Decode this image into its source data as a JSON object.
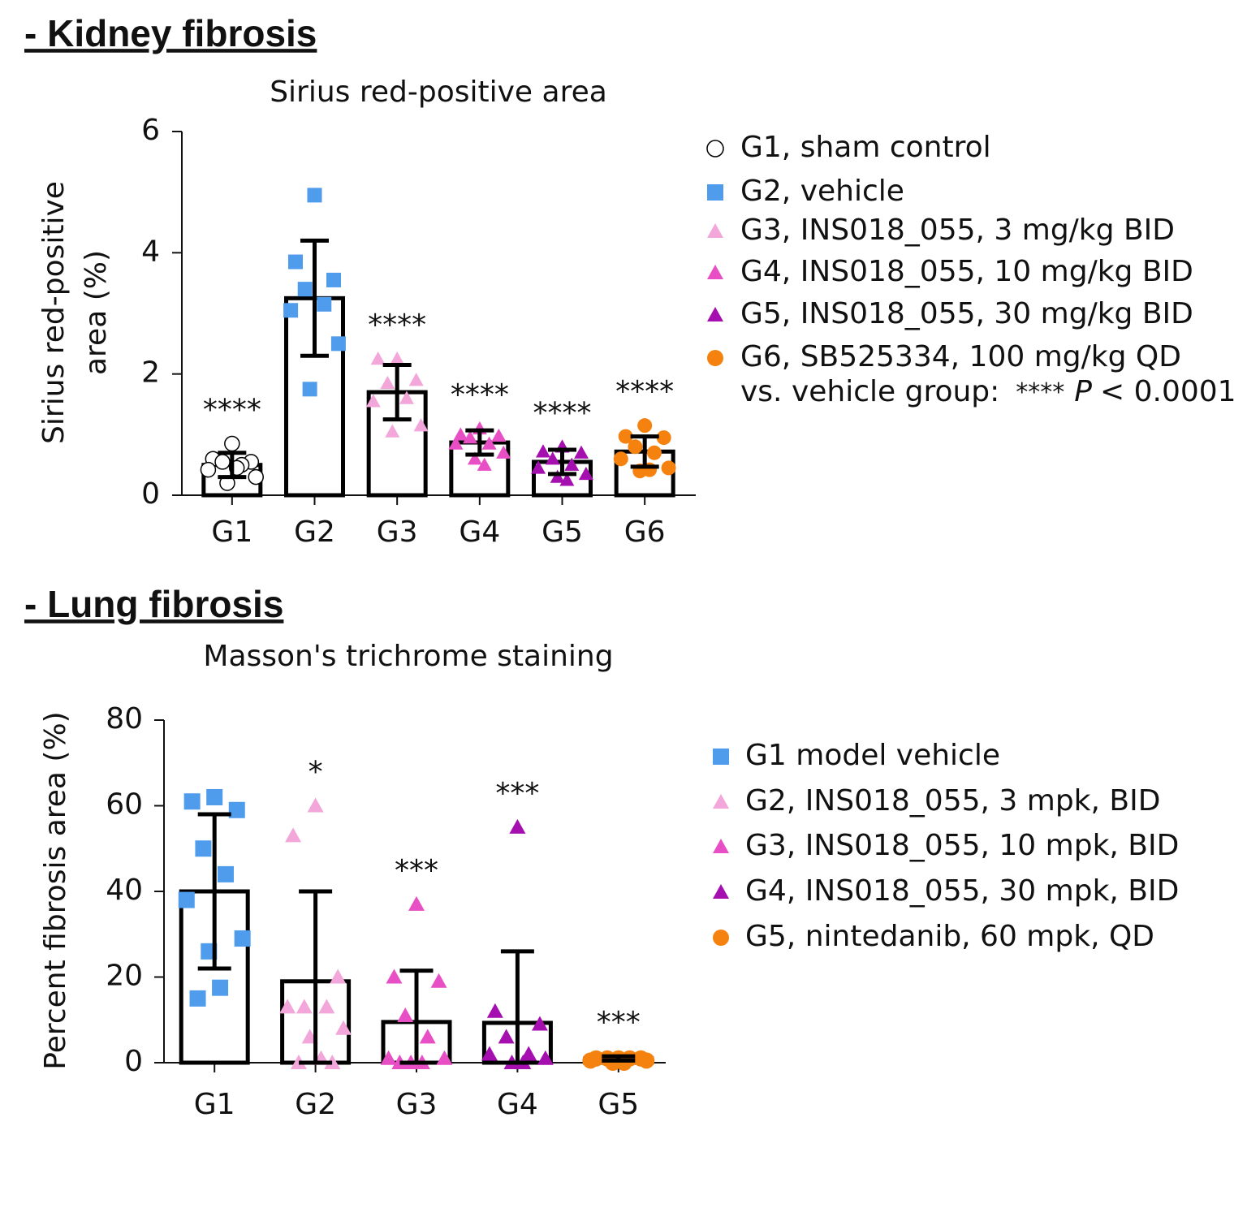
{
  "chart_data": [
    {
      "type": "bar",
      "heading": "- Kidney fibrosis",
      "title": "Sirius red-positive area",
      "y_label": [
        "Sirius red-positive",
        "area (%)"
      ],
      "categories": [
        "G1",
        "G2",
        "G3",
        "G4",
        "G5",
        "G6"
      ],
      "values": [
        0.5,
        3.25,
        1.7,
        0.87,
        0.55,
        0.72
      ],
      "errors": [
        0.2,
        0.95,
        0.45,
        0.2,
        0.2,
        0.25
      ],
      "significance": [
        "****",
        null,
        "****",
        "****",
        "****",
        "****"
      ],
      "ylim": [
        0,
        6
      ],
      "yticks": [
        0,
        2,
        4,
        6
      ],
      "series": [
        {
          "name": "G1, sham control",
          "color": "#000000",
          "marker": "circle-open",
          "points": [
            0.85,
            0.6,
            0.55,
            0.55,
            0.5,
            0.42,
            0.3,
            0.2,
            0.45
          ]
        },
        {
          "name": "G2, vehicle",
          "color": "#4f9bec",
          "marker": "square",
          "points": [
            4.95,
            3.85,
            3.55,
            3.4,
            3.15,
            3.05,
            2.5,
            1.75
          ]
        },
        {
          "name": "G3, INS018_055, 3 mg/kg BID",
          "color": "#f2a6da",
          "marker": "triangle",
          "points": [
            2.25,
            2.25,
            1.9,
            1.85,
            1.6,
            1.55,
            1.15,
            1.05
          ]
        },
        {
          "name": "G4, INS018_055, 10 mg/kg BID",
          "color": "#e84fc4",
          "marker": "triangle",
          "points": [
            1.1,
            1.0,
            0.98,
            0.95,
            0.85,
            0.85,
            0.7,
            0.6,
            0.5
          ]
        },
        {
          "name": "G5, INS018_055, 30 mg/kg BID",
          "color": "#a50fb0",
          "marker": "triangle",
          "points": [
            0.8,
            0.72,
            0.7,
            0.6,
            0.5,
            0.45,
            0.35,
            0.3,
            0.25
          ]
        },
        {
          "name": "G6, SB525334, 100 mg/kg QD",
          "color": "#f5820e",
          "marker": "circle",
          "points": [
            1.15,
            0.97,
            0.95,
            0.8,
            0.7,
            0.6,
            0.45,
            0.4,
            0.42
          ]
        }
      ],
      "note": [
        "vs. vehicle group:",
        "****",
        "P",
        "< 0.0001"
      ]
    },
    {
      "type": "bar",
      "heading": "- Lung fibrosis",
      "title": "Masson's trichrome staining",
      "y_label": [
        "Percent fibrosis area (%)"
      ],
      "categories": [
        "G1",
        "G2",
        "G3",
        "G4",
        "G5"
      ],
      "values": [
        40,
        19,
        9.5,
        9.3,
        1
      ],
      "errors": [
        18,
        21,
        12,
        16.7,
        0.5
      ],
      "significance": [
        null,
        "*",
        "***",
        "***",
        "***"
      ],
      "ylim": [
        0,
        80
      ],
      "yticks": [
        0,
        20,
        40,
        60,
        80
      ],
      "series": [
        {
          "name": "G1 model vehicle",
          "color": "#4f9bec",
          "marker": "square",
          "points": [
            62,
            61,
            59,
            50,
            44,
            38,
            29,
            26,
            17.5,
            15
          ]
        },
        {
          "name": "G2, INS018_055, 3 mpk, BID",
          "color": "#f2a6da",
          "marker": "triangle",
          "points": [
            60,
            53,
            20,
            13,
            13,
            13,
            8,
            6,
            1,
            0,
            0
          ]
        },
        {
          "name": "G3, INS018_055, 10 mpk, BID",
          "color": "#e84fc4",
          "marker": "triangle",
          "points": [
            37,
            20,
            19,
            11,
            6,
            1,
            1,
            0,
            0,
            0
          ]
        },
        {
          "name": "G4, INS018_055, 30 mpk, BID",
          "color": "#a50fb0",
          "marker": "triangle",
          "points": [
            55,
            12,
            9,
            6,
            2,
            2,
            1,
            0,
            0
          ]
        },
        {
          "name": "G5, nintedanib, 60 mpk, QD",
          "color": "#f5820e",
          "marker": "circle",
          "points": [
            1,
            1,
            1,
            1,
            1,
            0.5,
            0.5,
            0,
            0
          ]
        }
      ]
    }
  ]
}
